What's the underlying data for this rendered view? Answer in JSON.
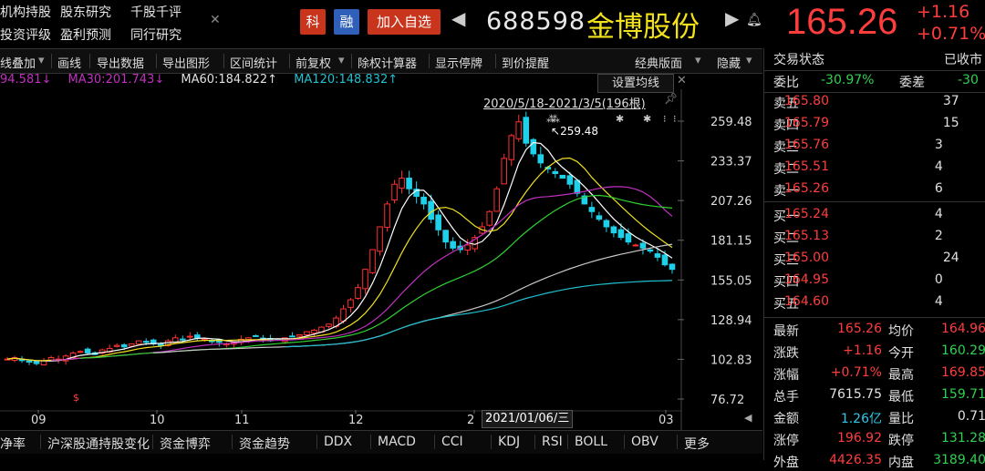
{
  "top_nav": {
    "row1": [
      "机构持股",
      "股东研究",
      "千股千评"
    ],
    "row2": [
      "投资评级",
      "盈利预测",
      "同行研究"
    ]
  },
  "header": {
    "badge_ke": "科",
    "badge_rong": "融",
    "add_favorite": "加入自选",
    "code": "688598",
    "name": "金博股份",
    "price": "165.26",
    "change": "+1.16",
    "change_pct": "+0.71%"
  },
  "toolbar": {
    "items": [
      "线叠加",
      "画线",
      "导出数据",
      "导出图形",
      "区间统计",
      "前复权",
      "除权计算器",
      "显示停牌",
      "到价提醒",
      "经典版面",
      "隐藏"
    ]
  },
  "ma_legend": {
    "ma20": "94.581↓",
    "ma30": "MA30:201.743↓",
    "ma60": "MA60:184.822↑",
    "ma120": "MA120:148.832↑"
  },
  "chart_overlay": {
    "set_ma_button": "设置均线",
    "range_label": "2020/5/18-2021/3/5(196根)",
    "high_label": "259.48",
    "cursor_date": "2021/01/06/三"
  },
  "chart_data": {
    "type": "candlestick",
    "y_ticks": [
      259.48,
      233.37,
      207.26,
      181.15,
      155.05,
      128.94,
      102.83,
      76.72
    ],
    "ylim": [
      76.72,
      259.48
    ],
    "x_ticks": [
      "09",
      "10",
      "11",
      "12",
      "2",
      "03"
    ],
    "close_series": [
      {
        "seg": "early",
        "values": [
          103,
          104,
          102,
          101,
          100,
          102,
          104,
          103,
          105,
          107,
          108,
          107,
          106,
          109,
          110,
          112,
          111,
          113,
          115,
          114,
          113,
          112,
          115,
          117,
          116,
          118,
          117,
          116,
          115,
          114,
          113,
          114,
          116,
          117,
          118,
          116,
          115,
          116,
          117,
          118,
          119,
          121,
          122,
          124,
          126,
          130,
          136,
          142,
          150,
          162,
          175,
          190,
          205,
          218,
          222,
          215,
          210,
          205,
          195,
          188,
          180,
          176,
          175,
          178,
          183,
          190,
          200,
          215,
          235,
          250,
          259,
          245,
          238,
          232,
          228,
          225,
          222,
          218,
          212,
          205,
          200,
          195,
          190,
          186,
          183,
          180,
          178,
          176,
          174,
          170,
          165,
          162
        ]
      }
    ],
    "ma_colors": {
      "ma_white": "#ffffff",
      "ma_yellow": "#f0e020",
      "ma30": "#c030c0",
      "ma60": "#30d030",
      "ma120": "#20c0d0",
      "ma250": "#c8c8c8"
    }
  },
  "bottom_tabs": [
    "净率",
    "沪深股通持股变化",
    "资金博弈",
    "资金趋势",
    "DDX",
    "MACD",
    "CCI",
    "KDJ",
    "RSI",
    "BOLL",
    "OBV",
    "更多"
  ],
  "right_panel": {
    "trade_status_label": "交易状态",
    "trade_status_value": "已收市",
    "weibi_label": "委比",
    "weibi_value": "-30.97%",
    "weicha_label": "委差",
    "weicha_value": "-30",
    "asks": [
      {
        "label": "卖五",
        "price": "165.80",
        "vol": "37"
      },
      {
        "label": "卖四",
        "price": "165.79",
        "vol": "15"
      },
      {
        "label": "卖三",
        "price": "165.76",
        "vol": "3"
      },
      {
        "label": "卖二",
        "price": "165.51",
        "vol": "4"
      },
      {
        "label": "卖一",
        "price": "165.26",
        "vol": "6"
      }
    ],
    "bids": [
      {
        "label": "买一",
        "price": "165.24",
        "vol": "4"
      },
      {
        "label": "买二",
        "price": "165.13",
        "vol": "2"
      },
      {
        "label": "买三",
        "price": "165.00",
        "vol": "24"
      },
      {
        "label": "买四",
        "price": "164.95",
        "vol": "0"
      },
      {
        "label": "买五",
        "price": "164.60",
        "vol": "4"
      }
    ],
    "stats": [
      {
        "l1": "最新",
        "v1": "165.26",
        "c1": "#ff3d3d",
        "l2": "均价",
        "v2": "164.96",
        "c2": "#ff3d3d"
      },
      {
        "l1": "涨跌",
        "v1": "+1.16",
        "c1": "#ff3d3d",
        "l2": "今开",
        "v2": "160.29",
        "c2": "#30d050"
      },
      {
        "l1": "涨幅",
        "v1": "+0.71%",
        "c1": "#ff3d3d",
        "l2": "最高",
        "v2": "169.85",
        "c2": "#ff3d3d"
      },
      {
        "l1": "总手",
        "v1": "7615.75",
        "c1": "#e0e0e0",
        "l2": "最低",
        "v2": "159.71",
        "c2": "#30d050"
      },
      {
        "l1": "金额",
        "v1": "1.26亿",
        "c1": "#30c8e8",
        "l2": "量比",
        "v2": "0.71",
        "c2": "#e0e0e0"
      },
      {
        "l1": "涨停",
        "v1": "196.92",
        "c1": "#ff3d3d",
        "l2": "跌停",
        "v2": "131.28",
        "c2": "#30d050"
      },
      {
        "l1": "外盘",
        "v1": "4426.35",
        "c1": "#ff3d3d",
        "l2": "内盘",
        "v2": "3189.40",
        "c2": "#30d050"
      }
    ]
  }
}
